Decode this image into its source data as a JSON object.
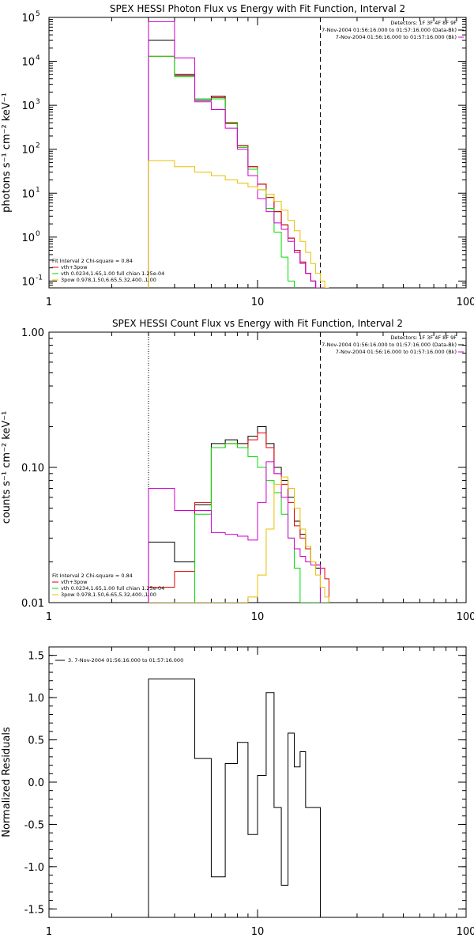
{
  "colors": {
    "axis": "#000000",
    "black": "#000000",
    "red": "#e00000",
    "green": "#00dd00",
    "magenta": "#d000d0",
    "yellow": "#e8c000",
    "background": "#ffffff"
  },
  "chart_data": [
    {
      "type": "line",
      "title": "SPEX HESSI Photon Flux vs Energy with Fit Function, Interval 2",
      "ylabel": "photons s⁻¹ cm⁻² keV⁻¹",
      "xlabel": "",
      "xscale": "log",
      "yscale": "log",
      "xlim": [
        1,
        100
      ],
      "ylim": [
        0.07,
        100000
      ],
      "xticks": [
        {
          "v": 1,
          "label": "1"
        },
        {
          "v": 10,
          "label": "10"
        },
        {
          "v": 100,
          "label": "100"
        }
      ],
      "yticks": [
        {
          "v": 0.1,
          "b": "10",
          "e": "-1"
        },
        {
          "v": 1,
          "b": "10",
          "e": "0"
        },
        {
          "v": 10,
          "b": "10",
          "e": "1"
        },
        {
          "v": 100,
          "b": "10",
          "e": "2"
        },
        {
          "v": 1000,
          "b": "10",
          "e": "3"
        },
        {
          "v": 10000,
          "b": "10",
          "e": "4"
        },
        {
          "v": 100000,
          "b": "10",
          "e": "5"
        }
      ],
      "vlines": [
        {
          "x": 3,
          "style": "dotted"
        },
        {
          "x": 20,
          "style": "dashed"
        }
      ],
      "legend_right": [
        "Detectors: 1F 3F 4F 8F 9F",
        "7-Nov-2004 01:56:16.000 to 01:57:16.000 (Data-Bk)",
        "7-Nov-2004 01:56:16.000 to 01:57:16.000 (Bk)"
      ],
      "legend_right_colors": [
        "",
        "black",
        "magenta"
      ],
      "legend_left": [
        "Fit Interval 2   Chi-square = 0.84",
        "vth+3pow",
        "vth 0.0234,1.65,1.00  full chian 1.25e-04",
        "3pow 0.978,1.50,6.65,5.32,400.,1.00"
      ],
      "legend_left_colors": [
        "",
        "red",
        "green",
        "yellow"
      ],
      "series": [
        {
          "color": "black",
          "edges": [
            3,
            4,
            5,
            6,
            7,
            8,
            9,
            10,
            11,
            12,
            13,
            14,
            15,
            16,
            17,
            18,
            19,
            20
          ],
          "values": [
            30000,
            5000,
            1300,
            1600,
            400,
            120,
            40,
            16,
            8,
            3.8,
            1.9,
            0.95,
            0.5,
            0.27,
            0.15,
            0.1,
            0.07
          ]
        },
        {
          "color": "red",
          "edges": [
            3,
            4,
            5,
            6,
            7,
            8,
            9,
            10,
            11,
            12,
            13,
            14,
            15,
            16,
            17,
            18,
            19,
            20,
            21,
            22
          ],
          "values": [
            13000,
            4700,
            1400,
            1500,
            400,
            120,
            40,
            16,
            8,
            3.8,
            1.9,
            0.95,
            0.5,
            0.27,
            0.15,
            0.1,
            0.07,
            0.07,
            0.07
          ]
        },
        {
          "color": "green",
          "edges": [
            3,
            4,
            5,
            6,
            7,
            8,
            9,
            10,
            11,
            12,
            13,
            14,
            15
          ],
          "values": [
            13000,
            4500,
            1400,
            1400,
            380,
            110,
            35,
            12,
            4.5,
            1.3,
            0.35,
            0.1
          ]
        },
        {
          "color": "magenta",
          "edges": [
            3,
            4,
            5,
            6,
            7,
            8,
            9,
            10,
            11,
            12,
            13,
            14,
            15,
            16,
            17,
            18,
            19,
            20
          ],
          "values": [
            80000,
            12000,
            1200,
            800,
            300,
            100,
            25,
            7.5,
            3.8,
            2.1,
            1.5,
            0.8,
            0.45,
            0.25,
            0.15,
            0.1,
            0.07
          ]
        },
        {
          "color": "yellow",
          "edges": [
            3,
            4,
            5,
            6,
            7,
            8,
            9,
            10,
            11,
            12,
            13,
            14,
            15,
            16,
            17,
            18,
            19,
            20,
            21,
            22
          ],
          "values": [
            55,
            40,
            30,
            25,
            20,
            17,
            14,
            12,
            9.5,
            6.5,
            4.1,
            2.4,
            1.4,
            0.8,
            0.45,
            0.25,
            0.15,
            0.1,
            0.07
          ]
        }
      ]
    },
    {
      "type": "line",
      "title": "SPEX HESSI Count Flux vs Energy with Fit Function, Interval 2",
      "ylabel": "counts s⁻¹ cm⁻² keV⁻¹",
      "xlabel": "",
      "xscale": "log",
      "yscale": "log",
      "xlim": [
        1,
        100
      ],
      "ylim": [
        0.01,
        1.0
      ],
      "xticks": [
        {
          "v": 1,
          "label": "1"
        },
        {
          "v": 10,
          "label": "10"
        },
        {
          "v": 100,
          "label": "100"
        }
      ],
      "yticks": [
        {
          "v": 0.01,
          "label": "0.01"
        },
        {
          "v": 0.1,
          "label": "0.10"
        },
        {
          "v": 1,
          "label": "1.00"
        }
      ],
      "vlines": [
        {
          "x": 3,
          "style": "dotted"
        },
        {
          "x": 20,
          "style": "dashed"
        }
      ],
      "legend_right": [
        "Detectors: 1F 3F 4F 8F 9F",
        "7-Nov-2004 01:56:16.000 to 01:57:16.000 (Data-Bk)",
        "7-Nov-2004 01:56:16.000 to 01:57:16.000 (Bk)"
      ],
      "legend_right_colors": [
        "",
        "black",
        "magenta"
      ],
      "legend_left": [
        "Fit Interval 2   Chi-square = 0.84",
        "vth+3pow",
        "vth 0.0234,1.65,1.00  full chian 1.25e-04",
        "3pow 0.978,1.50,6.65,5.32,400.,1.00"
      ],
      "legend_left_colors": [
        "",
        "red",
        "green",
        "yellow"
      ],
      "series": [
        {
          "color": "black",
          "edges": [
            3,
            4,
            5,
            6,
            7,
            8,
            9,
            10,
            11,
            12,
            13,
            14,
            15,
            16,
            17,
            18,
            19,
            20
          ],
          "values": [
            0.028,
            0.02,
            0.053,
            0.15,
            0.16,
            0.15,
            0.17,
            0.2,
            0.15,
            0.1,
            0.08,
            0.06,
            0.04,
            0.032,
            0.026,
            0.02,
            0.018
          ]
        },
        {
          "color": "red",
          "edges": [
            3,
            4,
            5,
            6,
            7,
            8,
            9,
            10,
            11,
            12,
            13,
            14,
            15,
            16,
            17,
            18,
            19,
            20,
            21,
            22
          ],
          "values": [
            0.013,
            0.017,
            0.055,
            0.14,
            0.15,
            0.14,
            0.16,
            0.18,
            0.14,
            0.09,
            0.075,
            0.055,
            0.037,
            0.03,
            0.025,
            0.02,
            0.019,
            0.018,
            0.015
          ]
        },
        {
          "color": "green",
          "edges": [
            3,
            4,
            5,
            6,
            7,
            8,
            9,
            10,
            11,
            12,
            13,
            14,
            15,
            16,
            17,
            18,
            19,
            20,
            21,
            22
          ],
          "values": [
            0.008,
            0.008,
            0.045,
            0.14,
            0.15,
            0.14,
            0.12,
            0.1,
            0.08,
            0.065,
            0.045,
            0.03,
            0.018,
            0.008,
            0.008,
            0.008,
            0.008,
            0.008,
            0.008
          ]
        },
        {
          "color": "magenta",
          "edges": [
            3,
            4,
            5,
            6,
            7,
            8,
            9,
            10,
            11,
            12,
            13,
            14,
            15,
            16,
            17,
            18,
            19,
            20
          ],
          "values": [
            0.07,
            0.048,
            0.048,
            0.033,
            0.032,
            0.031,
            0.029,
            0.055,
            0.11,
            0.09,
            0.06,
            0.03,
            0.025,
            0.022,
            0.02,
            0.019,
            0.019
          ]
        },
        {
          "color": "yellow",
          "edges": [
            3,
            4,
            5,
            6,
            7,
            8,
            9,
            10,
            11,
            12,
            13,
            14,
            15,
            16,
            17,
            18,
            19,
            20,
            21,
            22
          ],
          "values": [
            0.008,
            0.008,
            0.008,
            0.008,
            0.008,
            0.008,
            0.011,
            0.016,
            0.035,
            0.075,
            0.085,
            0.07,
            0.05,
            0.035,
            0.026,
            0.02,
            0.016,
            0.013,
            0.011
          ]
        }
      ]
    },
    {
      "type": "line",
      "title": "",
      "ylabel": "Normalized Residuals",
      "xlabel": "",
      "xscale": "log",
      "yscale": "linear",
      "xlim": [
        1,
        100
      ],
      "ylim": [
        -1.6,
        1.6
      ],
      "xticks": [
        {
          "v": 1,
          "label": "1"
        },
        {
          "v": 10,
          "label": "10"
        },
        {
          "v": 100,
          "label": "100"
        }
      ],
      "yticks": [
        {
          "v": -1.5,
          "label": "-1.5"
        },
        {
          "v": -1.0,
          "label": "-1.0"
        },
        {
          "v": -0.5,
          "label": "-0.5"
        },
        {
          "v": 0.0,
          "label": "0.0"
        },
        {
          "v": 0.5,
          "label": "0.5"
        },
        {
          "v": 1.0,
          "label": "1.0"
        },
        {
          "v": 1.5,
          "label": "1.5"
        }
      ],
      "vlines": [],
      "legend_right": [],
      "legend_right_colors": [],
      "legend_left_top": "3.  7-Nov-2004 01:56:16.000 to 01:57:16.000",
      "series": [
        {
          "color": "black",
          "edges": [
            3,
            4,
            5,
            6,
            7,
            8,
            9,
            10,
            11,
            12,
            13,
            14,
            15,
            16,
            17,
            18,
            19,
            20
          ],
          "values": [
            1.22,
            1.22,
            0.28,
            -1.12,
            0.22,
            0.47,
            -0.62,
            0.08,
            1.06,
            -0.3,
            -1.22,
            0.58,
            0.18,
            0.36,
            -0.3,
            -0.3,
            -0.3
          ],
          "bottom": -1.6
        }
      ]
    }
  ]
}
